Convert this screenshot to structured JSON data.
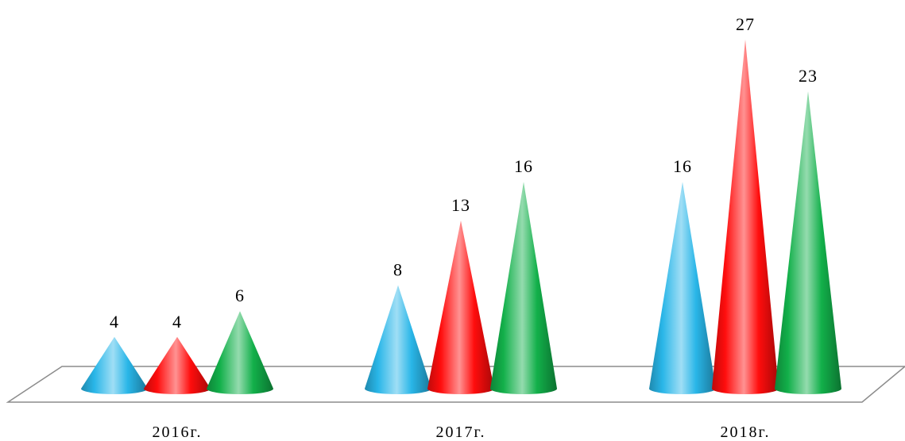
{
  "chart_data": {
    "type": "bar",
    "shape": "cone",
    "title": "",
    "xlabel": "",
    "ylabel": "",
    "categories": [
      "2016г.",
      "2017г.",
      "2018г."
    ],
    "series": [
      {
        "values": [
          4,
          8,
          16
        ],
        "color": "#29b6e8"
      },
      {
        "values": [
          4,
          13,
          27
        ],
        "color": "#ff0d0d"
      },
      {
        "values": [
          6,
          16,
          23
        ],
        "color": "#12b04a"
      }
    ],
    "ylim": [
      0,
      27
    ],
    "grid": false,
    "legend": "none",
    "data_labels": true,
    "floor_color": "#8c8c8c"
  }
}
